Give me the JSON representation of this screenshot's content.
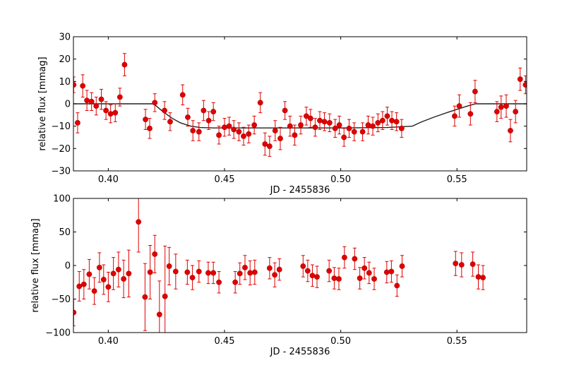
{
  "chart_data": [
    {
      "type": "scatter",
      "title": "",
      "xlabel": "JD - 2455836",
      "ylabel": "relative flux [mmag]",
      "xlim": [
        0.385,
        0.58
      ],
      "ylim": [
        -30,
        30
      ],
      "xticks": [
        "0.40",
        "0.45",
        "0.50",
        "0.55"
      ],
      "xtick_values": [
        0.4,
        0.45,
        0.5,
        0.55
      ],
      "yticks": [
        "−30",
        "−20",
        "−10",
        "0",
        "10",
        "20",
        "30"
      ],
      "ytick_values": [
        -30,
        -20,
        -10,
        0,
        10,
        20,
        30
      ],
      "grid": false,
      "point_color": "#e00000",
      "line_color": "#222222",
      "points": [
        [
          0.3851,
          8.5,
          3.5
        ],
        [
          0.3868,
          -8.5,
          4.5
        ],
        [
          0.389,
          8.0,
          5
        ],
        [
          0.3908,
          1.5,
          4.5
        ],
        [
          0.3928,
          1.0,
          4
        ],
        [
          0.3948,
          -1.0,
          4
        ],
        [
          0.397,
          2.0,
          4.5
        ],
        [
          0.399,
          -3.0,
          4
        ],
        [
          0.401,
          -4.5,
          4
        ],
        [
          0.403,
          -4.0,
          4
        ],
        [
          0.405,
          3.0,
          4
        ],
        [
          0.407,
          17.5,
          5
        ],
        [
          0.416,
          -7.0,
          4.5
        ],
        [
          0.4178,
          -11.0,
          4.5
        ],
        [
          0.42,
          0.5,
          4
        ],
        [
          0.4242,
          -3.0,
          4
        ],
        [
          0.4266,
          -8.0,
          4
        ],
        [
          0.432,
          4.0,
          4.5
        ],
        [
          0.4342,
          -6.0,
          4
        ],
        [
          0.4364,
          -12.0,
          4.5
        ],
        [
          0.439,
          -12.5,
          4
        ],
        [
          0.441,
          -3.0,
          4.5
        ],
        [
          0.4432,
          -7.5,
          4
        ],
        [
          0.4452,
          -3.5,
          4
        ],
        [
          0.4476,
          -14.0,
          4
        ],
        [
          0.45,
          -10.5,
          4
        ],
        [
          0.452,
          -10.0,
          4
        ],
        [
          0.454,
          -11.5,
          4
        ],
        [
          0.4562,
          -12.5,
          4
        ],
        [
          0.4582,
          -14.5,
          4
        ],
        [
          0.4604,
          -13.5,
          4
        ],
        [
          0.4628,
          -9.5,
          4
        ],
        [
          0.4654,
          0.5,
          4.5
        ],
        [
          0.4674,
          -18.0,
          5
        ],
        [
          0.4694,
          -19.0,
          4.5
        ],
        [
          0.4718,
          -12.0,
          4.5
        ],
        [
          0.474,
          -15.5,
          5
        ],
        [
          0.476,
          -3.0,
          4
        ],
        [
          0.4782,
          -10.0,
          4.5
        ],
        [
          0.4802,
          -14.0,
          4.5
        ],
        [
          0.4828,
          -9.5,
          4
        ],
        [
          0.4852,
          -5.5,
          4
        ],
        [
          0.487,
          -6.5,
          4
        ],
        [
          0.489,
          -10.5,
          4
        ],
        [
          0.491,
          -7.5,
          4
        ],
        [
          0.493,
          -8.0,
          4
        ],
        [
          0.4952,
          -8.5,
          4
        ],
        [
          0.4976,
          -11.0,
          4
        ],
        [
          0.4994,
          -9.5,
          4
        ],
        [
          0.5014,
          -15.0,
          4
        ],
        [
          0.5036,
          -11.0,
          4
        ],
        [
          0.5058,
          -12.5,
          4
        ],
        [
          0.5094,
          -12.5,
          4
        ],
        [
          0.5118,
          -9.5,
          4
        ],
        [
          0.5138,
          -10.0,
          4
        ],
        [
          0.516,
          -8.5,
          4
        ],
        [
          0.518,
          -7.5,
          4
        ],
        [
          0.52,
          -5.5,
          4
        ],
        [
          0.522,
          -7.5,
          4
        ],
        [
          0.524,
          -8.0,
          4
        ],
        [
          0.5262,
          -11.0,
          4
        ],
        [
          0.549,
          -5.5,
          4.5
        ],
        [
          0.551,
          -1.0,
          5
        ],
        [
          0.5558,
          -4.5,
          5
        ],
        [
          0.5578,
          5.5,
          5
        ],
        [
          0.5672,
          -3.5,
          4.5
        ],
        [
          0.569,
          -1.5,
          5
        ],
        [
          0.5712,
          -1.0,
          5
        ],
        [
          0.573,
          -12.0,
          5
        ],
        [
          0.5752,
          -3.5,
          5
        ],
        [
          0.5772,
          11.0,
          5
        ],
        [
          0.5795,
          8.5,
          4
        ]
      ],
      "model_line": [
        [
          0.385,
          0.0
        ],
        [
          0.4195,
          0.0
        ],
        [
          0.4235,
          -3.5
        ],
        [
          0.4275,
          -6.5
        ],
        [
          0.431,
          -8.5
        ],
        [
          0.4355,
          -10.0
        ],
        [
          0.4395,
          -10.6
        ],
        [
          0.4455,
          -10.8
        ],
        [
          0.47,
          -10.8
        ],
        [
          0.5,
          -10.8
        ],
        [
          0.52,
          -10.6
        ],
        [
          0.5308,
          -10.0
        ],
        [
          0.5345,
          -8.2
        ],
        [
          0.54,
          -6.0
        ],
        [
          0.547,
          -3.5
        ],
        [
          0.5545,
          -1.0
        ],
        [
          0.558,
          0.0
        ],
        [
          0.58,
          0.0
        ]
      ]
    },
    {
      "type": "scatter",
      "title": "",
      "xlabel": "JD - 2455836",
      "ylabel": "relative flux [mmag]",
      "xlim": [
        0.385,
        0.58
      ],
      "ylim": [
        -100,
        100
      ],
      "xticks": [
        "0.40",
        "0.45",
        "0.50",
        "0.55"
      ],
      "xtick_values": [
        0.4,
        0.45,
        0.5,
        0.55
      ],
      "yticks": [
        "−100",
        "−50",
        "0",
        "50",
        "100"
      ],
      "ytick_values": [
        -100,
        -50,
        0,
        50,
        100
      ],
      "grid": false,
      "point_color": "#e00000",
      "points": [
        [
          0.3851,
          -70.0,
          20
        ],
        [
          0.3875,
          -31.0,
          22
        ],
        [
          0.3895,
          -28.0,
          22
        ],
        [
          0.3918,
          -13.0,
          22
        ],
        [
          0.394,
          -38.0,
          20
        ],
        [
          0.3962,
          -3.0,
          22
        ],
        [
          0.398,
          -21.0,
          22
        ],
        [
          0.4,
          -32.0,
          22
        ],
        [
          0.4022,
          -12.0,
          24
        ],
        [
          0.4044,
          -6.0,
          26
        ],
        [
          0.4066,
          -20.0,
          28
        ],
        [
          0.4088,
          -12.0,
          35
        ],
        [
          0.413,
          65.0,
          45
        ],
        [
          0.4158,
          -47.0,
          50
        ],
        [
          0.418,
          -10.0,
          40
        ],
        [
          0.42,
          17.0,
          28
        ],
        [
          0.422,
          -73.0,
          50
        ],
        [
          0.4244,
          -46.0,
          75
        ],
        [
          0.4262,
          -1.0,
          28
        ],
        [
          0.429,
          -9.0,
          26
        ],
        [
          0.434,
          -10.0,
          18
        ],
        [
          0.4362,
          -18.0,
          18
        ],
        [
          0.439,
          -9.0,
          16
        ],
        [
          0.443,
          -11.0,
          16
        ],
        [
          0.4452,
          -11.0,
          16
        ],
        [
          0.4476,
          -25.0,
          16
        ],
        [
          0.4546,
          -25.0,
          16
        ],
        [
          0.4566,
          -12.0,
          16
        ],
        [
          0.4588,
          -3.0,
          18
        ],
        [
          0.461,
          -11.0,
          18
        ],
        [
          0.463,
          -10.0,
          18
        ],
        [
          0.4694,
          -4.0,
          16
        ],
        [
          0.4716,
          -14.0,
          18
        ],
        [
          0.4736,
          -6.0,
          16
        ],
        [
          0.4838,
          -1.0,
          16
        ],
        [
          0.4858,
          -8.0,
          16
        ],
        [
          0.4878,
          -15.0,
          16
        ],
        [
          0.4898,
          -17.0,
          16
        ],
        [
          0.495,
          -8.0,
          16
        ],
        [
          0.4972,
          -19.0,
          16
        ],
        [
          0.4992,
          -20.0,
          16
        ],
        [
          0.5016,
          12.0,
          16
        ],
        [
          0.506,
          10.0,
          16
        ],
        [
          0.5082,
          -19.0,
          16
        ],
        [
          0.5102,
          -4.0,
          16
        ],
        [
          0.5122,
          -11.0,
          16
        ],
        [
          0.5144,
          -20.0,
          16
        ],
        [
          0.5198,
          -10.0,
          16
        ],
        [
          0.5218,
          -9.0,
          16
        ],
        [
          0.5242,
          -30.0,
          16
        ],
        [
          0.5264,
          -1.0,
          16
        ],
        [
          0.5494,
          3.0,
          18
        ],
        [
          0.552,
          1.0,
          18
        ],
        [
          0.5568,
          2.0,
          18
        ],
        [
          0.5592,
          -17.0,
          18
        ],
        [
          0.5612,
          -18.0,
          18
        ]
      ]
    }
  ]
}
